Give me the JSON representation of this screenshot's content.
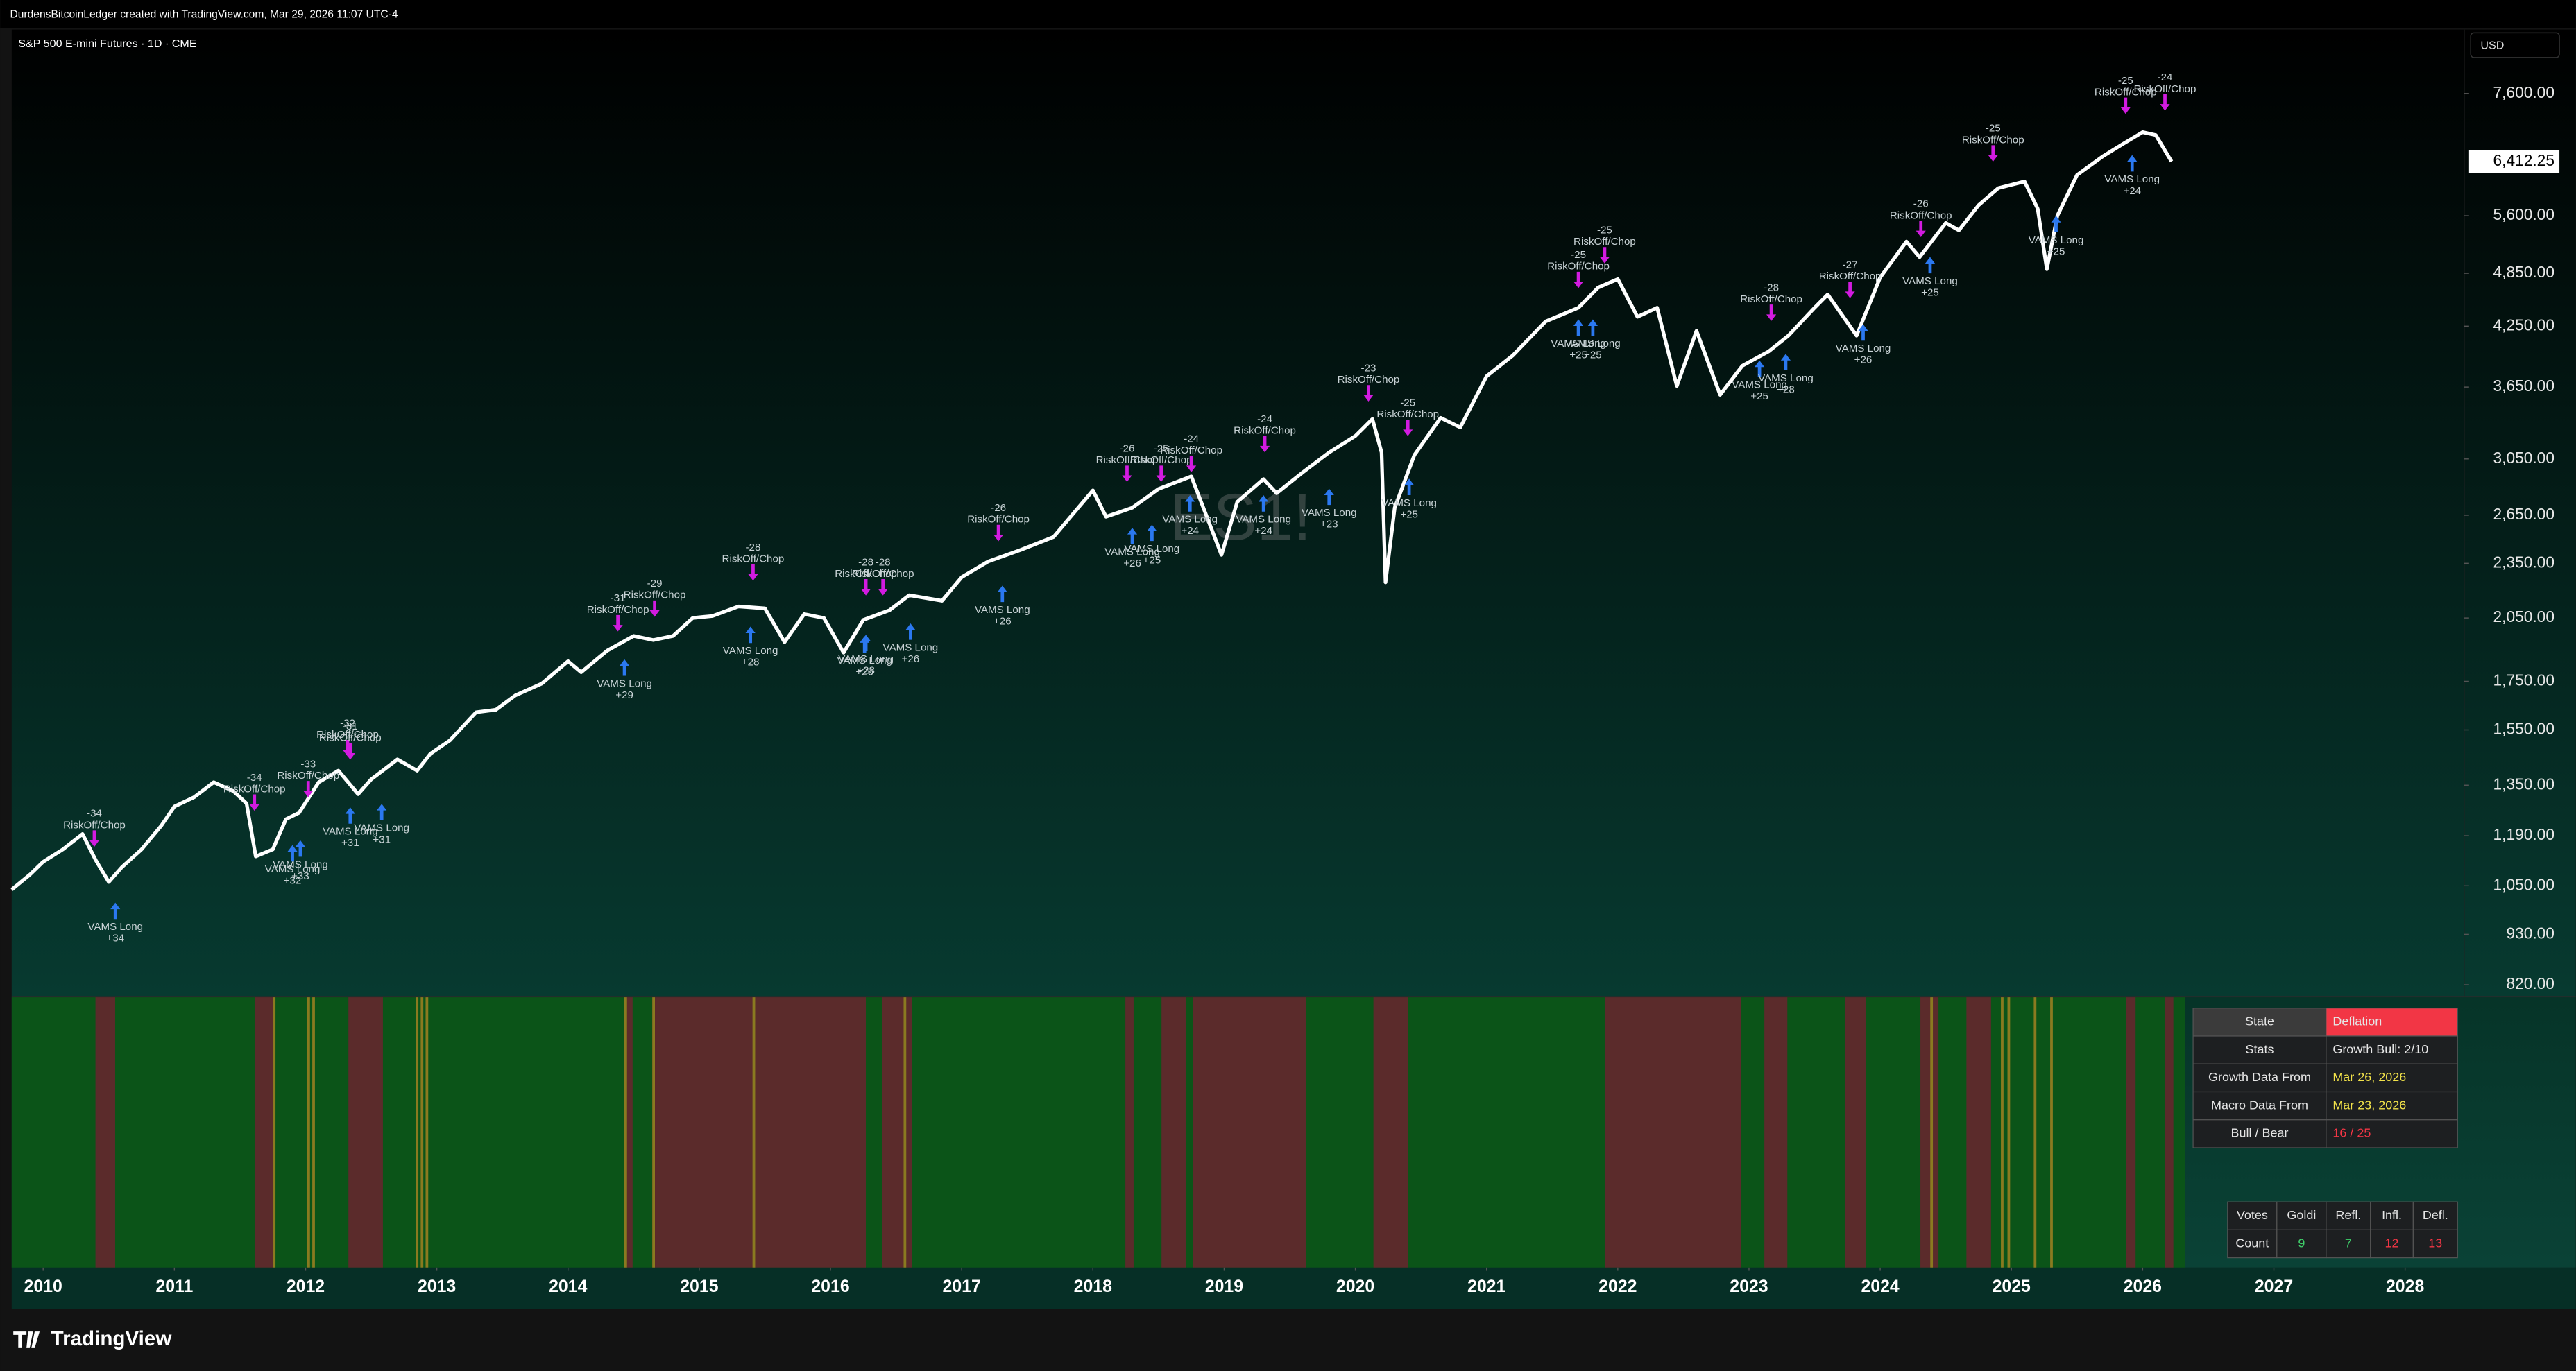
{
  "header": "DurdensBitcoinLedger created with TradingView.com, Mar 29, 2026 11:07 UTC-4",
  "logo": "TradingView",
  "chart_data": {
    "type": "line",
    "title": "S&P 500 E-mini Futures · 1D · CME",
    "currency": "USD",
    "watermark": "ES1!",
    "color": "#ffffff",
    "log_scale": true,
    "x": [
      2009.76,
      2009.9,
      2010.0,
      2010.15,
      2010.3,
      2010.4,
      2010.5,
      2010.6,
      2010.75,
      2010.9,
      2011.0,
      2011.15,
      2011.3,
      2011.45,
      2011.55,
      2011.62,
      2011.75,
      2011.85,
      2011.95,
      2012.1,
      2012.25,
      2012.4,
      2012.5,
      2012.7,
      2012.85,
      2012.95,
      2013.1,
      2013.3,
      2013.45,
      2013.6,
      2013.8,
      2014.0,
      2014.1,
      2014.3,
      2014.5,
      2014.65,
      2014.8,
      2014.95,
      2015.1,
      2015.3,
      2015.5,
      2015.65,
      2015.8,
      2015.95,
      2016.1,
      2016.25,
      2016.45,
      2016.6,
      2016.85,
      2017.0,
      2017.2,
      2017.45,
      2017.7,
      2018.0,
      2018.1,
      2018.3,
      2018.5,
      2018.75,
      2018.98,
      2019.1,
      2019.3,
      2019.4,
      2019.6,
      2019.8,
      2020.0,
      2020.13,
      2020.2,
      2020.23,
      2020.3,
      2020.45,
      2020.65,
      2020.8,
      2021.0,
      2021.2,
      2021.45,
      2021.7,
      2021.85,
      2022.0,
      2022.15,
      2022.3,
      2022.45,
      2022.6,
      2022.78,
      2022.95,
      2023.15,
      2023.3,
      2023.5,
      2023.6,
      2023.82,
      2024.0,
      2024.2,
      2024.3,
      2024.5,
      2024.6,
      2024.75,
      2024.9,
      2025.1,
      2025.2,
      2025.27,
      2025.35,
      2025.5,
      2025.7,
      2025.85,
      2026.0,
      2026.1,
      2026.22
    ],
    "values": [
      1040,
      1080,
      1115,
      1150,
      1195,
      1120,
      1060,
      1100,
      1150,
      1220,
      1280,
      1310,
      1360,
      1330,
      1290,
      1130,
      1150,
      1240,
      1260,
      1360,
      1400,
      1320,
      1370,
      1440,
      1400,
      1460,
      1510,
      1620,
      1630,
      1690,
      1740,
      1840,
      1790,
      1890,
      1960,
      1940,
      1960,
      2050,
      2060,
      2110,
      2100,
      1930,
      2070,
      2050,
      1880,
      2040,
      2090,
      2170,
      2140,
      2270,
      2360,
      2430,
      2510,
      2820,
      2640,
      2700,
      2830,
      2920,
      2400,
      2740,
      2900,
      2800,
      2950,
      3100,
      3230,
      3370,
      3100,
      2241,
      2700,
      3080,
      3380,
      3300,
      3750,
      3950,
      4300,
      4450,
      4680,
      4780,
      4350,
      4450,
      3660,
      4200,
      3580,
      3850,
      3990,
      4150,
      4450,
      4600,
      4150,
      4800,
      5250,
      5050,
      5500,
      5400,
      5750,
      6000,
      6100,
      5700,
      4900,
      5600,
      6200,
      6500,
      6700,
      6900,
      6850,
      6412.25
    ],
    "xlim": [
      2009.76,
      2028.45
    ],
    "xticks": [
      2010,
      2011,
      2012,
      2013,
      2014,
      2015,
      2016,
      2017,
      2018,
      2019,
      2020,
      2021,
      2022,
      2023,
      2024,
      2025,
      2026,
      2027,
      2028
    ],
    "ylim": [
      796,
      8916
    ],
    "yticks": [
      {
        "value": 820,
        "label": "820.00"
      },
      {
        "value": 930,
        "label": "930.00"
      },
      {
        "value": 1050,
        "label": "1,050.00"
      },
      {
        "value": 1190,
        "label": "1,190.00"
      },
      {
        "value": 1350,
        "label": "1,350.00"
      },
      {
        "value": 1550,
        "label": "1,550.00"
      },
      {
        "value": 1750,
        "label": "1,750.00"
      },
      {
        "value": 2050,
        "label": "2,050.00"
      },
      {
        "value": 2350,
        "label": "2,350.00"
      },
      {
        "value": 2650,
        "label": "2,650.00"
      },
      {
        "value": 3050,
        "label": "3,050.00"
      },
      {
        "value": 3650,
        "label": "3,650.00"
      },
      {
        "value": 4250,
        "label": "4,250.00"
      },
      {
        "value": 4850,
        "label": "4,850.00"
      },
      {
        "value": 5600,
        "label": "5,600.00"
      },
      {
        "value": 7600,
        "label": "7,600.00"
      }
    ],
    "last_price": {
      "value": 6412.25,
      "label": "6,412.25"
    },
    "risk_signals": [
      {
        "x": 2010.39,
        "y": 1148,
        "score": "-34",
        "label": "RiskOff/Chop"
      },
      {
        "x": 2011.61,
        "y": 1256,
        "score": "-34",
        "label": "RiskOff/Chop"
      },
      {
        "x": 2012.02,
        "y": 1299,
        "score": "-33",
        "label": "RiskOff/Chop"
      },
      {
        "x": 2012.32,
        "y": 1439,
        "score": "-32",
        "label": "RiskOff/Chop"
      },
      {
        "x": 2012.34,
        "y": 1427,
        "score": "-31",
        "label": "RiskOff/Chop"
      },
      {
        "x": 2014.38,
        "y": 1966,
        "score": "-31",
        "label": "RiskOff/Chop"
      },
      {
        "x": 2014.66,
        "y": 2039,
        "score": "-29",
        "label": "RiskOff/Chop"
      },
      {
        "x": 2015.41,
        "y": 2232,
        "score": "-28",
        "label": "RiskOff/Chop"
      },
      {
        "x": 2016.27,
        "y": 2151,
        "score": "-28",
        "label": "RiskOff/Chop"
      },
      {
        "x": 2016.4,
        "y": 2151,
        "score": "-28",
        "label": "RiskOff/Chop"
      },
      {
        "x": 2017.28,
        "y": 2463,
        "score": "-26",
        "label": "RiskOff/Chop"
      },
      {
        "x": 2018.26,
        "y": 2856,
        "score": "-26",
        "label": "RiskOff/Chop"
      },
      {
        "x": 2018.52,
        "y": 2856,
        "score": "-25",
        "label": "RiskOff/Chop"
      },
      {
        "x": 2018.75,
        "y": 2927,
        "score": "-24",
        "label": "RiskOff/Chop"
      },
      {
        "x": 2019.31,
        "y": 3075,
        "score": "-24",
        "label": "RiskOff/Chop"
      },
      {
        "x": 2020.1,
        "y": 3492,
        "score": "-23",
        "label": "RiskOff/Chop"
      },
      {
        "x": 2020.4,
        "y": 3203,
        "score": "-25",
        "label": "RiskOff/Chop"
      },
      {
        "x": 2021.7,
        "y": 4635,
        "score": "-25",
        "label": "RiskOff/Chop"
      },
      {
        "x": 2021.9,
        "y": 4930,
        "score": "-25",
        "label": "RiskOff/Chop"
      },
      {
        "x": 2023.17,
        "y": 4270,
        "score": "-28",
        "label": "RiskOff/Chop"
      },
      {
        "x": 2023.77,
        "y": 4521,
        "score": "-27",
        "label": "RiskOff/Chop"
      },
      {
        "x": 2024.31,
        "y": 5264,
        "score": "-26",
        "label": "RiskOff/Chop"
      },
      {
        "x": 2024.86,
        "y": 6358,
        "score": "-25",
        "label": "RiskOff/Chop"
      },
      {
        "x": 2025.87,
        "y": 7163,
        "score": "-25",
        "label": "RiskOff/Chop"
      },
      {
        "x": 2026.17,
        "y": 7221,
        "score": "-24",
        "label": "RiskOff/Chop"
      }
    ],
    "long_signals": [
      {
        "x": 2010.55,
        "y": 1015,
        "score": "+34",
        "label": "VAMS Long"
      },
      {
        "x": 2011.96,
        "y": 1186,
        "score": "+33",
        "label": "VAMS Long"
      },
      {
        "x": 2011.9,
        "y": 1172,
        "score": "+32",
        "label": "VAMS Long"
      },
      {
        "x": 2012.34,
        "y": 1288,
        "score": "+31",
        "label": "VAMS Long"
      },
      {
        "x": 2012.58,
        "y": 1299,
        "score": "+31",
        "label": "VAMS Long"
      },
      {
        "x": 2014.43,
        "y": 1864,
        "score": "+29",
        "label": "VAMS Long"
      },
      {
        "x": 2015.39,
        "y": 2023,
        "score": "+28",
        "label": "VAMS Long"
      },
      {
        "x": 2016.27,
        "y": 1982,
        "score": "+28",
        "label": "VAMS Long"
      },
      {
        "x": 2016.26,
        "y": 1975,
        "score": "+26",
        "label": "VAMS Long"
      },
      {
        "x": 2016.61,
        "y": 2039,
        "score": "+26",
        "label": "VAMS Long"
      },
      {
        "x": 2017.31,
        "y": 2241,
        "score": "+26",
        "label": "VAMS Long"
      },
      {
        "x": 2018.3,
        "y": 2589,
        "score": "+26",
        "label": "VAMS Long"
      },
      {
        "x": 2018.45,
        "y": 2610,
        "score": "+25",
        "label": "VAMS Long"
      },
      {
        "x": 2018.74,
        "y": 2809,
        "score": "+24",
        "label": "VAMS Long"
      },
      {
        "x": 2019.3,
        "y": 2809,
        "score": "+24",
        "label": "VAMS Long"
      },
      {
        "x": 2019.8,
        "y": 2856,
        "score": "+23",
        "label": "VAMS Long"
      },
      {
        "x": 2020.41,
        "y": 2927,
        "score": "+25",
        "label": "VAMS Long"
      },
      {
        "x": 2021.7,
        "y": 4358,
        "score": "+25",
        "label": "VAMS Long"
      },
      {
        "x": 2021.81,
        "y": 4358,
        "score": "+25",
        "label": "VAMS Long"
      },
      {
        "x": 2023.08,
        "y": 3933,
        "score": "+25",
        "label": "VAMS Long"
      },
      {
        "x": 2023.28,
        "y": 3998,
        "score": "+28",
        "label": "VAMS Long"
      },
      {
        "x": 2023.87,
        "y": 4305,
        "score": "+26",
        "label": "VAMS Long"
      },
      {
        "x": 2024.38,
        "y": 5094,
        "score": "+25",
        "label": "VAMS Long"
      },
      {
        "x": 2025.34,
        "y": 5644,
        "score": "+25",
        "label": "VAMS Long"
      },
      {
        "x": 2025.92,
        "y": 6569,
        "score": "+24",
        "label": "VAMS Long"
      }
    ]
  },
  "state_table": {
    "rows": [
      [
        "State",
        "Deflation"
      ],
      [
        "Stats",
        "Growth Bull: 2/10"
      ],
      [
        "Growth Data From",
        "Mar 26, 2026"
      ],
      [
        "Macro Data From",
        "Mar 23, 2026"
      ],
      [
        "Bull / Bear",
        "16 / 25"
      ]
    ]
  },
  "votes_table": {
    "rows": [
      [
        "Votes",
        "Goldi",
        "Refl.",
        "Infl.",
        "Defl."
      ],
      [
        "Count",
        "9",
        "7",
        "12",
        "13"
      ]
    ]
  }
}
